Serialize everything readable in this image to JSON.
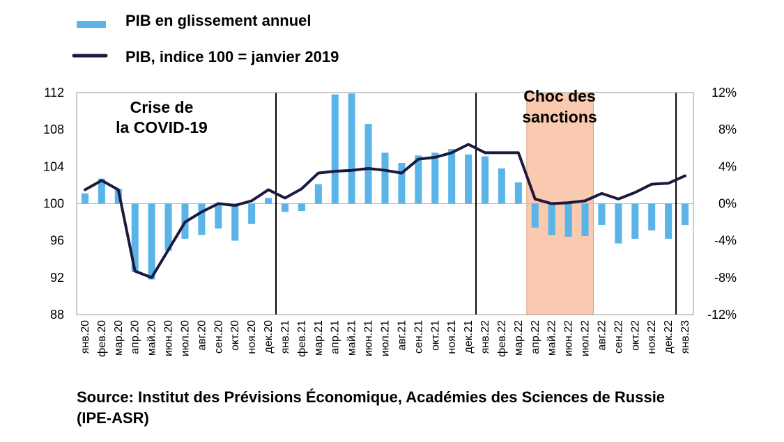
{
  "chart_data": {
    "type": "bar+line",
    "categories": [
      "янв.20",
      "фев.20",
      "мар.20",
      "апр.20",
      "май.20",
      "июн.20",
      "июл.20",
      "авг.20",
      "сен.20",
      "окт.20",
      "ноя.20",
      "дек.20",
      "янв.21",
      "фев.21",
      "мар.21",
      "апр.21",
      "май.21",
      "июн.21",
      "июл.21",
      "авг.21",
      "сен.21",
      "окт.21",
      "ноя.21",
      "дек.21",
      "янв.22",
      "фев.22",
      "мар.22",
      "апр.22",
      "май.22",
      "июн.22",
      "июл.22",
      "авг.22",
      "сен.22",
      "окт.22",
      "ноя.22",
      "дек.22",
      "янв.23"
    ],
    "series": [
      {
        "name": "PIB en glissement annuel",
        "type": "bar",
        "axis": "right",
        "color": "#5ab4e8",
        "values": [
          1.1,
          2.7,
          1.6,
          -7.4,
          -8.2,
          -5.1,
          -3.8,
          -3.4,
          -2.7,
          -4.0,
          -2.2,
          0.6,
          -0.9,
          -0.8,
          2.1,
          11.8,
          11.9,
          8.6,
          5.5,
          4.4,
          5.2,
          5.5,
          5.9,
          5.3,
          5.1,
          3.8,
          2.3,
          -2.6,
          -3.4,
          -3.6,
          -3.5,
          -2.3,
          -4.3,
          -3.8,
          -2.9,
          -3.8,
          -2.3
        ]
      },
      {
        "name": "PIB, indice 100 = janvier 2019",
        "type": "line",
        "axis": "left",
        "color": "#1a1a3e",
        "values": [
          101.5,
          102.5,
          101.5,
          92.7,
          92.0,
          95.0,
          98.0,
          99.1,
          100.0,
          99.8,
          100.3,
          101.5,
          100.6,
          101.6,
          103.3,
          103.5,
          103.6,
          103.8,
          103.6,
          103.3,
          104.8,
          105.0,
          105.5,
          106.4,
          105.5,
          105.5,
          105.5,
          100.5,
          100.0,
          100.1,
          100.3,
          101.1,
          100.5,
          101.2,
          102.1,
          102.2,
          103.0
        ]
      }
    ],
    "y_left": {
      "ylim": [
        88,
        112
      ],
      "ticks": [
        "112",
        "108",
        "104",
        "100",
        "96",
        "92",
        "88"
      ],
      "tick_values": [
        112,
        108,
        104,
        100,
        96,
        92,
        88
      ]
    },
    "y_right": {
      "ylim": [
        -12,
        12
      ],
      "ticks": [
        "12%",
        "8%",
        "4%",
        "0%",
        "-4%",
        "-8%",
        "-12%"
      ],
      "tick_values": [
        12,
        8,
        4,
        0,
        -4,
        -8,
        -12
      ]
    },
    "shaded_period": {
      "from": "апр.22",
      "to": "июл.22",
      "color": "#f9c9b0"
    },
    "vertical_lines": [
      "янв.21",
      "янв.22",
      "янв.23"
    ],
    "annotations": {
      "covid_line1": "Crise de",
      "covid_line2": "la COVID-19",
      "sanctions_line1": "Choc des",
      "sanctions_line2": "sanctions"
    },
    "legend": [
      {
        "label": "PIB en glissement annuel",
        "color": "#5ab4e8",
        "kind": "bar"
      },
      {
        "label": "PIB, indice 100 = janvier 2019",
        "color": "#1a1a3e",
        "kind": "line"
      }
    ]
  },
  "source_text": "Source: Institut des Prévisions Économique, Académies des Sciences de Russie (IPE-ASR)"
}
